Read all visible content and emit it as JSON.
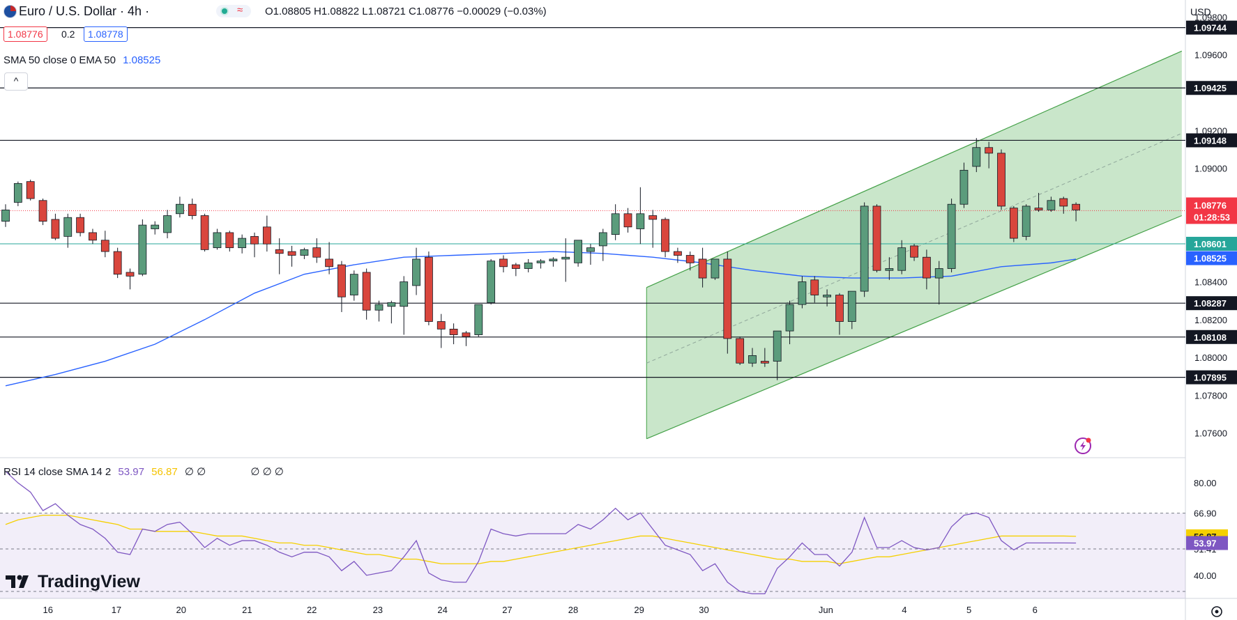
{
  "header": {
    "symbol": "Euro / U.S. Dollar · 4h ·",
    "ohlc": "O1.08805  H1.08822  L1.08721  C1.08776  −0.00029 (−0.03%)",
    "bid": "1.08776",
    "spread": "0.2",
    "ask": "1.08778",
    "indicator": "SMA 50 close 0 EMA 50",
    "indicator_value": "1.08525",
    "currency": "USD"
  },
  "rsi_header": {
    "label": "RSI 14 close SMA 14 2",
    "rsi": "53.97",
    "sma": "56.87",
    "extra": "∅ ∅",
    "extra2": "∅ ∅ ∅"
  },
  "brand": "TradingView",
  "colors": {
    "up": "#5b9c7c",
    "down": "#d9463d",
    "sma": "#2962ff",
    "rsi": "#7e57c2",
    "rsi_sma": "#f5d000",
    "channel": "#a5d6a7",
    "current_price": "#f23645",
    "green_line": "#26a69a"
  },
  "chart_data": [
    {
      "type": "candlestick",
      "title": "Euro / U.S. Dollar · 4h",
      "ylim": [
        1.0747,
        1.0989
      ],
      "y_ticks": [
        "1.09800",
        "1.09600",
        "1.09200",
        "1.09000",
        "1.08400",
        "1.08200",
        "1.08000",
        "1.07800",
        "1.07600"
      ],
      "x_ticks": [
        "16",
        "17",
        "20",
        "21",
        "22",
        "23",
        "24",
        "27",
        "28",
        "29",
        "30",
        "Jun",
        "4",
        "5",
        "6"
      ],
      "horizontal_levels": [
        {
          "value": 1.09744,
          "label": "1.09744"
        },
        {
          "value": 1.09425,
          "label": "1.09425"
        },
        {
          "value": 1.09148,
          "label": "1.09148"
        },
        {
          "value": 1.08287,
          "label": "1.08287"
        },
        {
          "value": 1.08108,
          "label": "1.08108"
        },
        {
          "value": 1.07895,
          "label": "1.07895"
        }
      ],
      "current_price": {
        "value": 1.08776,
        "label": "1.08776",
        "countdown": "01:28:53"
      },
      "green_level": {
        "value": 1.08601,
        "label": "1.08601"
      },
      "sma50": {
        "value": 1.08525,
        "label": "1.08525"
      },
      "channel": {
        "start": {
          "x": 51.5,
          "lower": 1.0757,
          "upper": 1.0837
        },
        "end": {
          "x": 94.5,
          "lower": 1.0875,
          "upper": 1.0962
        }
      },
      "candles": [
        [
          0,
          1.0872,
          1.0881,
          1.0869,
          1.0878
        ],
        [
          1,
          1.0882,
          1.0893,
          1.088,
          1.0892
        ],
        [
          2,
          1.0893,
          1.0894,
          1.0883,
          1.0884
        ],
        [
          3,
          1.0883,
          1.0884,
          1.087,
          1.0872
        ],
        [
          4,
          1.0873,
          1.0876,
          1.0862,
          1.0863
        ],
        [
          5,
          1.0864,
          1.0876,
          1.0858,
          1.0874
        ],
        [
          6,
          1.0874,
          1.0876,
          1.0864,
          1.0866
        ],
        [
          7,
          1.0866,
          1.0868,
          1.086,
          1.0862
        ],
        [
          8,
          1.0862,
          1.0867,
          1.0853,
          1.0856
        ],
        [
          9,
          1.0856,
          1.0858,
          1.0842,
          1.0844
        ],
        [
          10,
          1.0845,
          1.0847,
          1.0836,
          1.0843
        ],
        [
          11,
          1.0844,
          1.0873,
          1.0843,
          1.087
        ],
        [
          12,
          1.0868,
          1.0872,
          1.0865,
          1.087
        ],
        [
          13,
          1.0866,
          1.0878,
          1.0863,
          1.0875
        ],
        [
          14,
          1.0876,
          1.0885,
          1.0874,
          1.0881
        ],
        [
          15,
          1.0881,
          1.0884,
          1.0873,
          1.0875
        ],
        [
          16,
          1.0875,
          1.0876,
          1.0856,
          1.0857
        ],
        [
          17,
          1.0858,
          1.0868,
          1.0857,
          1.0866
        ],
        [
          18,
          1.0866,
          1.0867,
          1.0856,
          1.0858
        ],
        [
          19,
          1.0858,
          1.0865,
          1.0855,
          1.0863
        ],
        [
          20,
          1.0864,
          1.0866,
          1.0853,
          1.086
        ],
        [
          21,
          1.0869,
          1.0875,
          1.0856,
          1.086
        ],
        [
          22,
          1.0857,
          1.0863,
          1.0844,
          1.0855
        ],
        [
          23,
          1.0856,
          1.0859,
          1.0848,
          1.0854
        ],
        [
          24,
          1.0854,
          1.0858,
          1.0852,
          1.0857
        ],
        [
          25,
          1.0858,
          1.0863,
          1.085,
          1.0853
        ],
        [
          26,
          1.0852,
          1.0861,
          1.0844,
          1.0848
        ],
        [
          27,
          1.0849,
          1.0851,
          1.0824,
          1.0832
        ],
        [
          28,
          1.0833,
          1.0846,
          1.083,
          1.0844
        ],
        [
          29,
          1.0845,
          1.0847,
          1.082,
          1.0825
        ],
        [
          30,
          1.0825,
          1.083,
          1.0819,
          1.0828
        ],
        [
          31,
          1.0827,
          1.083,
          1.0818,
          1.0829
        ],
        [
          32,
          1.0827,
          1.0843,
          1.0812,
          1.084
        ],
        [
          33,
          1.0838,
          1.0858,
          1.0833,
          1.0852
        ],
        [
          34,
          1.0853,
          1.0856,
          1.0817,
          1.0819
        ],
        [
          35,
          1.0819,
          1.0823,
          1.0805,
          1.0815
        ],
        [
          36,
          1.0815,
          1.0818,
          1.0807,
          1.0812
        ],
        [
          37,
          1.0813,
          1.0814,
          1.0806,
          1.0811
        ],
        [
          38,
          1.0812,
          1.0827,
          1.0811,
          1.0828
        ],
        [
          39,
          1.0829,
          1.0852,
          1.0828,
          1.0851
        ],
        [
          40,
          1.0852,
          1.0854,
          1.0845,
          1.0848
        ],
        [
          41,
          1.0849,
          1.085,
          1.0843,
          1.0847
        ],
        [
          42,
          1.0847,
          1.0852,
          1.0845,
          1.085
        ],
        [
          43,
          1.085,
          1.0852,
          1.0847,
          1.0851
        ],
        [
          44,
          1.0851,
          1.0853,
          1.0848,
          1.0852
        ],
        [
          45,
          1.0852,
          1.0863,
          1.084,
          1.0853
        ],
        [
          46,
          1.085,
          1.086,
          1.0848,
          1.0862
        ],
        [
          47,
          1.0856,
          1.086,
          1.0849,
          1.0858
        ],
        [
          48,
          1.0859,
          1.0868,
          1.0851,
          1.0866
        ],
        [
          49,
          1.0865,
          1.0881,
          1.0862,
          1.0876
        ],
        [
          50,
          1.0876,
          1.0879,
          1.0866,
          1.0869
        ],
        [
          51,
          1.0868,
          1.089,
          1.086,
          1.0876
        ],
        [
          52,
          1.0875,
          1.0878,
          1.0858,
          1.0873
        ],
        [
          53,
          1.0873,
          1.0874,
          1.0853,
          1.0856
        ],
        [
          54,
          1.0856,
          1.0858,
          1.085,
          1.0854
        ],
        [
          55,
          1.0854,
          1.0856,
          1.0846,
          1.085
        ],
        [
          56,
          1.0852,
          1.0858,
          1.0837,
          1.0842
        ],
        [
          57,
          1.0842,
          1.085,
          1.0841,
          1.0852
        ],
        [
          58,
          1.0852,
          1.0856,
          1.0802,
          1.081
        ],
        [
          59,
          1.081,
          1.0811,
          1.0796,
          1.0797
        ],
        [
          60,
          1.0797,
          1.0805,
          1.0795,
          1.0801
        ],
        [
          61,
          1.0798,
          1.0805,
          1.0795,
          1.0797
        ],
        [
          62,
          1.0798,
          1.0812,
          1.0788,
          1.0814
        ],
        [
          63,
          1.0814,
          1.083,
          1.0807,
          1.0828
        ],
        [
          64,
          1.0828,
          1.0843,
          1.0826,
          1.084
        ],
        [
          65,
          1.0841,
          1.0843,
          1.0829,
          1.0833
        ],
        [
          66,
          1.0832,
          1.0836,
          1.0827,
          1.0833
        ],
        [
          67,
          1.0833,
          1.0834,
          1.0812,
          1.0819
        ],
        [
          68,
          1.0819,
          1.0835,
          1.0815,
          1.0835
        ],
        [
          69,
          1.0835,
          1.0882,
          1.0832,
          1.088
        ],
        [
          70,
          1.088,
          1.0881,
          1.0845,
          1.0846
        ],
        [
          71,
          1.0846,
          1.0853,
          1.0841,
          1.0847
        ],
        [
          72,
          1.0846,
          1.0862,
          1.0844,
          1.0858
        ],
        [
          73,
          1.0859,
          1.086,
          1.0851,
          1.0853
        ],
        [
          74,
          1.0853,
          1.0857,
          1.0836,
          1.0842
        ],
        [
          75,
          1.0842,
          1.0851,
          1.0828,
          1.0847
        ],
        [
          76,
          1.0847,
          1.0884,
          1.0845,
          1.0881
        ],
        [
          77,
          1.0881,
          1.0903,
          1.0879,
          1.0899
        ],
        [
          78,
          1.0901,
          1.0916,
          1.0898,
          1.0911
        ],
        [
          79,
          1.0911,
          1.0914,
          1.09,
          1.0908
        ],
        [
          80,
          1.0908,
          1.091,
          1.0878,
          1.088
        ],
        [
          81,
          1.0879,
          1.088,
          1.0861,
          1.0863
        ],
        [
          82,
          1.0864,
          1.0881,
          1.0862,
          1.088
        ],
        [
          83,
          1.0879,
          1.0887,
          1.0877,
          1.0878
        ],
        [
          84,
          1.0878,
          1.0885,
          1.0877,
          1.0883
        ],
        [
          85,
          1.0884,
          1.0885,
          1.0876,
          1.088
        ],
        [
          86,
          1.0881,
          1.0882,
          1.0872,
          1.0878
        ]
      ],
      "sma50_series": [
        [
          0,
          1.0785
        ],
        [
          4,
          1.0791
        ],
        [
          8,
          1.0798
        ],
        [
          12,
          1.0807
        ],
        [
          16,
          1.082
        ],
        [
          20,
          1.0834
        ],
        [
          24,
          1.0844
        ],
        [
          28,
          1.0849
        ],
        [
          32,
          1.0853
        ],
        [
          36,
          1.0854
        ],
        [
          40,
          1.0855
        ],
        [
          44,
          1.0856
        ],
        [
          48,
          1.0855
        ],
        [
          52,
          1.0853
        ],
        [
          56,
          1.085
        ],
        [
          60,
          1.0846
        ],
        [
          64,
          1.0843
        ],
        [
          68,
          1.0842
        ],
        [
          72,
          1.0842
        ],
        [
          76,
          1.0843
        ],
        [
          80,
          1.0848
        ],
        [
          84,
          1.085
        ],
        [
          86,
          1.0852
        ]
      ]
    },
    {
      "type": "line",
      "title": "RSI 14 close SMA 14 2",
      "ylim": [
        30,
        90
      ],
      "y_ticks": [
        "80.00",
        "40.00"
      ],
      "bands": [
        66.9,
        51.41
      ],
      "band_labels": [
        "66.90",
        "51.41"
      ],
      "tags": [
        {
          "value": 56.87,
          "label": "56.87"
        },
        {
          "value": 53.97,
          "label": "53.97"
        }
      ],
      "series": [
        {
          "name": "RSI",
          "values": [
            85,
            80,
            76,
            68,
            71,
            66,
            62,
            60,
            56,
            50,
            49,
            60,
            59,
            62,
            63,
            58,
            52,
            56,
            53,
            55,
            55,
            53,
            50,
            48,
            50,
            50,
            48,
            42,
            46,
            40,
            41,
            42,
            48,
            55,
            41,
            38,
            37,
            37,
            46,
            60,
            58,
            57,
            58,
            58,
            58,
            58,
            62,
            60,
            64,
            69,
            64,
            67,
            60,
            53,
            51,
            49,
            42,
            45,
            37,
            33,
            32,
            32,
            43,
            48,
            54,
            49,
            49,
            44,
            50,
            65,
            52,
            52,
            55,
            52,
            51,
            52,
            61,
            66,
            67,
            65,
            55,
            51,
            54,
            54,
            54,
            54,
            53.97
          ]
        },
        {
          "name": "SMA",
          "values": [
            62,
            64,
            65,
            66,
            66,
            66,
            65,
            64,
            63,
            62,
            60,
            60,
            59,
            59,
            59,
            59,
            58,
            57,
            57,
            57,
            56,
            55,
            54,
            54,
            53,
            53,
            52,
            51,
            50,
            49,
            49,
            48,
            47,
            47,
            46,
            45,
            45,
            45,
            45,
            46,
            46,
            47,
            48,
            49,
            50,
            51,
            52,
            53,
            54,
            55,
            56,
            57,
            57,
            56,
            55,
            54,
            53,
            52,
            51,
            50,
            49,
            48,
            47,
            47,
            46,
            46,
            46,
            45,
            46,
            47,
            48,
            48,
            49,
            50,
            51,
            52,
            53,
            54,
            55,
            56,
            57,
            57,
            57,
            57,
            57,
            57,
            56.87
          ]
        }
      ]
    }
  ]
}
